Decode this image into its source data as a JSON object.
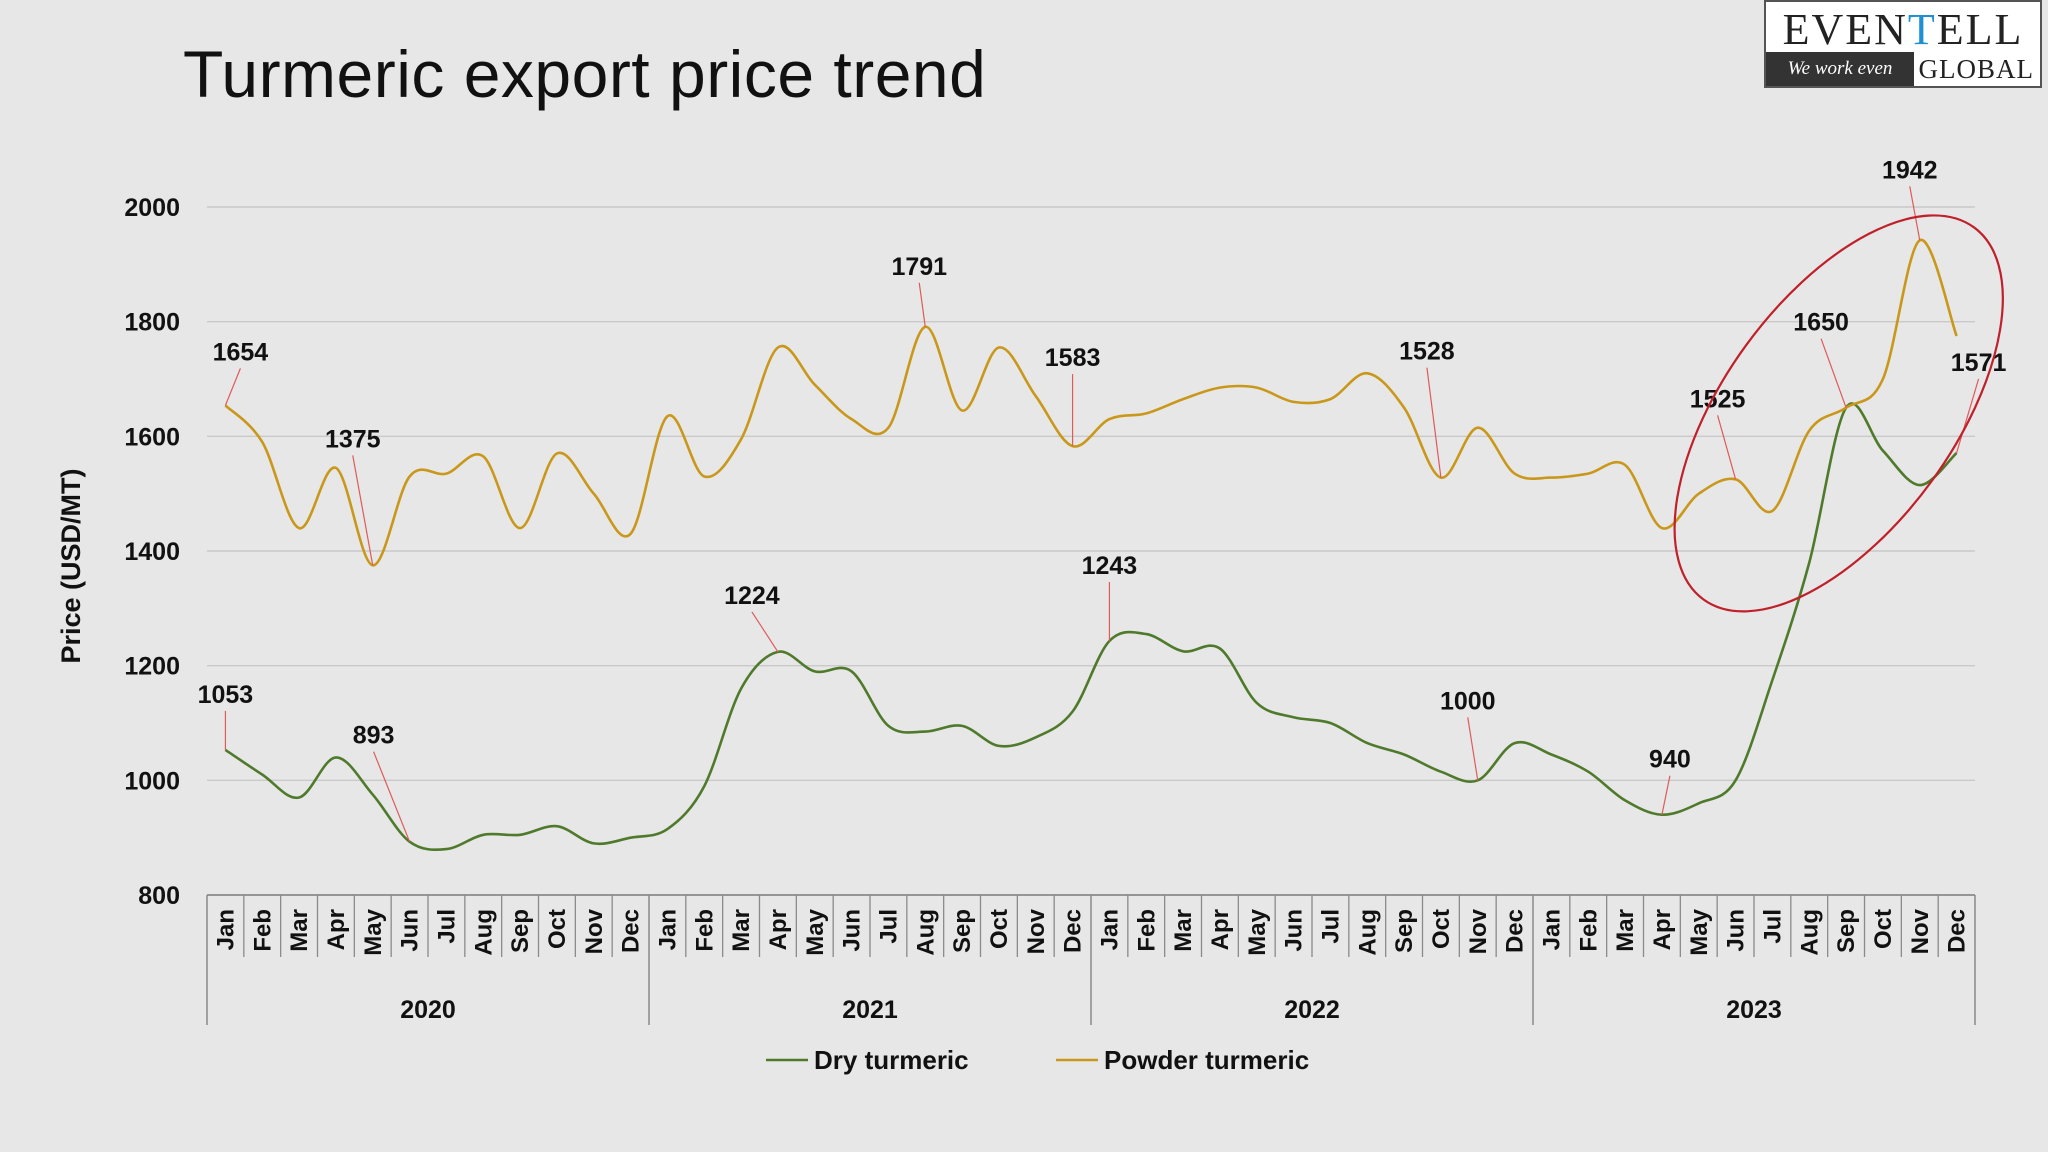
{
  "title": "Turmeric export price trend",
  "logo": {
    "brand_a": "EVEN",
    "brand_b": "T",
    "brand_c": "ELL",
    "tagline": "We work even",
    "sub": "GLOBAL"
  },
  "colors": {
    "dry": "#4f7a2b",
    "powder": "#c9981b",
    "callout": "#e05a5a",
    "highlight": "#c0202a"
  },
  "chart_data": {
    "type": "line",
    "title": "Turmeric export price trend",
    "ylabel": "Price (USD/MT)",
    "xlabel": "",
    "ylim": [
      800,
      2000
    ],
    "yticks": [
      800,
      1000,
      1200,
      1400,
      1600,
      1800,
      2000
    ],
    "grid": true,
    "legend_position": "bottom",
    "years": [
      "2020",
      "2021",
      "2022",
      "2023"
    ],
    "months": [
      "Jan",
      "Feb",
      "Mar",
      "Apr",
      "May",
      "Jun",
      "Jul",
      "Aug",
      "Sep",
      "Oct",
      "Nov",
      "Dec"
    ],
    "series": [
      {
        "name": "Dry turmeric",
        "values": [
          1053,
          1010,
          970,
          1040,
          975,
          893,
          880,
          905,
          905,
          920,
          890,
          900,
          915,
          990,
          1160,
          1224,
          1190,
          1190,
          1095,
          1085,
          1095,
          1060,
          1075,
          1120,
          1243,
          1255,
          1225,
          1230,
          1135,
          1110,
          1100,
          1065,
          1045,
          1015,
          1000,
          1065,
          1045,
          1015,
          965,
          940,
          960,
          1000,
          1175,
          1380,
          1650,
          1575,
          1515,
          1571
        ]
      },
      {
        "name": "Powder turmeric",
        "values": [
          1654,
          1590,
          1440,
          1545,
          1375,
          1530,
          1535,
          1565,
          1440,
          1570,
          1500,
          1430,
          1635,
          1530,
          1595,
          1755,
          1690,
          1630,
          1615,
          1791,
          1645,
          1755,
          1670,
          1583,
          1630,
          1640,
          1665,
          1685,
          1685,
          1660,
          1665,
          1710,
          1650,
          1528,
          1615,
          1535,
          1528,
          1535,
          1550,
          1440,
          1500,
          1525,
          1470,
          1610,
          1650,
          1700,
          1942,
          1775
        ]
      }
    ],
    "annotations": [
      {
        "series": "Powder turmeric",
        "index": 0,
        "label": "1654"
      },
      {
        "series": "Powder turmeric",
        "index": 4,
        "label": "1375"
      },
      {
        "series": "Powder turmeric",
        "index": 19,
        "label": "1791"
      },
      {
        "series": "Powder turmeric",
        "index": 23,
        "label": "1583"
      },
      {
        "series": "Powder turmeric",
        "index": 33,
        "label": "1528"
      },
      {
        "series": "Powder turmeric",
        "index": 41,
        "label": "1525"
      },
      {
        "series": "Powder turmeric",
        "index": 46,
        "label": "1942"
      },
      {
        "series": "Dry turmeric",
        "index": 0,
        "label": "1053"
      },
      {
        "series": "Dry turmeric",
        "index": 5,
        "label": "893"
      },
      {
        "series": "Dry turmeric",
        "index": 15,
        "label": "1224"
      },
      {
        "series": "Dry turmeric",
        "index": 24,
        "label": "1243"
      },
      {
        "series": "Dry turmeric",
        "index": 34,
        "label": "1000"
      },
      {
        "series": "Dry turmeric",
        "index": 39,
        "label": "940"
      },
      {
        "series": "Dry turmeric",
        "index": 44,
        "label": "1650"
      },
      {
        "series": "Dry turmeric",
        "index": 47,
        "label": "1571"
      }
    ]
  }
}
